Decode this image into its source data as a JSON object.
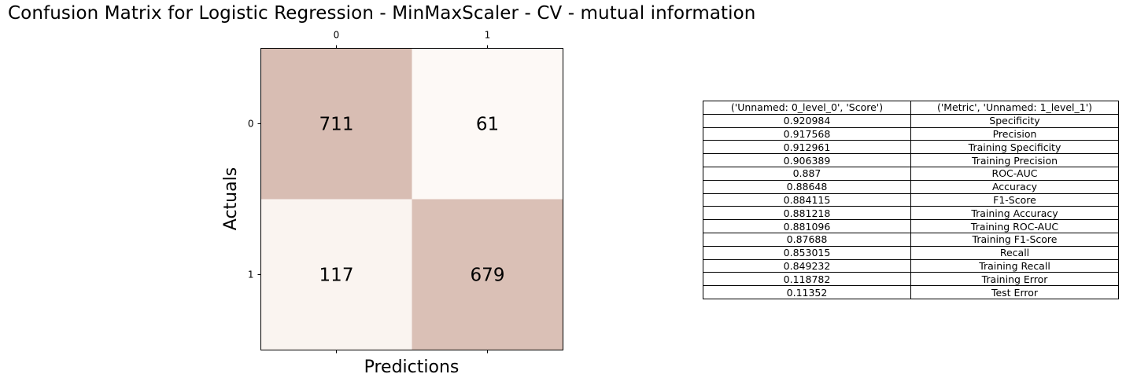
{
  "title": "Confusion Matrix for Logistic Regression - MinMaxScaler - CV - mutual information",
  "chart_data": {
    "type": "heatmap",
    "title": "Confusion Matrix for Logistic Regression - MinMaxScaler - CV - mutual information",
    "xlabel": "Predictions",
    "ylabel": "Actuals",
    "x_categories": [
      "0",
      "1"
    ],
    "y_categories": [
      "0",
      "1"
    ],
    "values": [
      [
        711,
        61
      ],
      [
        117,
        679
      ]
    ],
    "color_low": "#fdf9f6",
    "color_high": "#d8bdb3",
    "x_ticks_position": "top-and-bottom",
    "grid": false
  },
  "table": {
    "header": [
      "('Unnamed: 0_level_0', 'Score')",
      "('Metric', 'Unnamed: 1_level_1')"
    ],
    "rows": [
      [
        "0.920984",
        "Specificity"
      ],
      [
        "0.917568",
        "Precision"
      ],
      [
        "0.912961",
        "Training Specificity"
      ],
      [
        "0.906389",
        "Training Precision"
      ],
      [
        "0.887",
        "ROC-AUC"
      ],
      [
        "0.88648",
        "Accuracy"
      ],
      [
        "0.884115",
        "F1-Score"
      ],
      [
        "0.881218",
        "Training Accuracy"
      ],
      [
        "0.881096",
        "Training ROC-AUC"
      ],
      [
        "0.87688",
        "Training F1-Score"
      ],
      [
        "0.853015",
        "Recall"
      ],
      [
        "0.849232",
        "Training Recall"
      ],
      [
        "0.118782",
        "Training Error"
      ],
      [
        "0.11352",
        "Test Error"
      ]
    ]
  }
}
